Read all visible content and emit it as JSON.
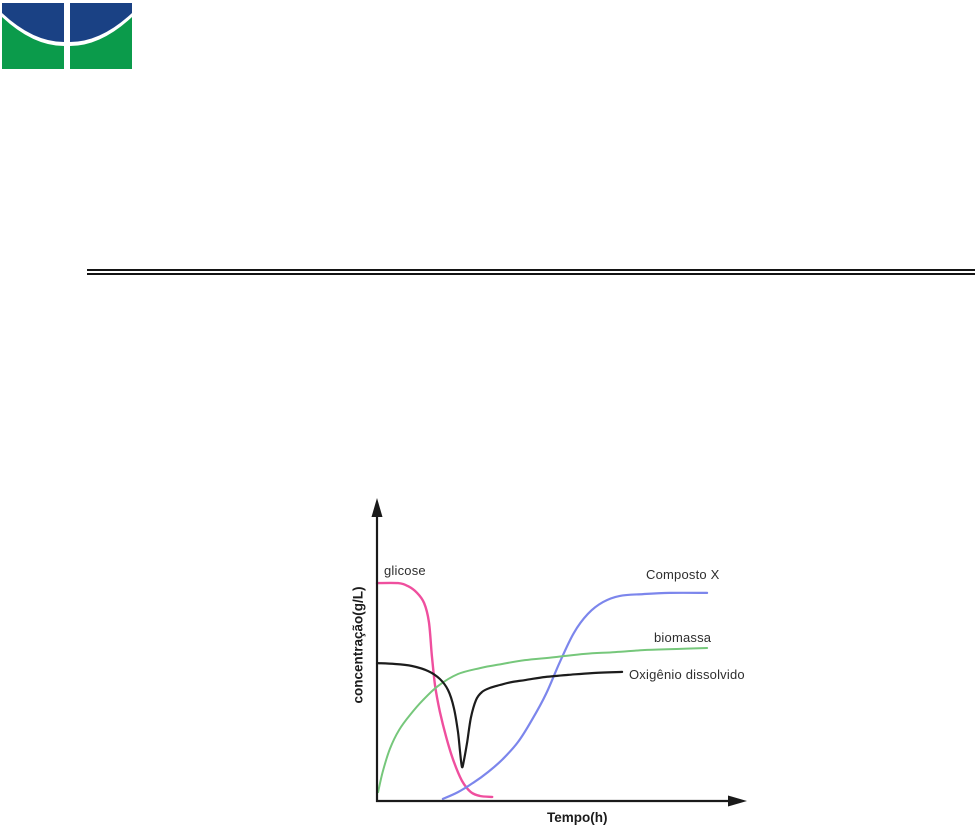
{
  "page": {
    "background": "#ffffff"
  },
  "logo": {
    "name": "university-crest-logo",
    "blue": "#1a4184",
    "green": "#0b9b4b"
  },
  "divider": {
    "style": "double",
    "color": "#141414"
  },
  "chart_data": {
    "type": "line",
    "title": "",
    "xlabel": "Tempo(h)",
    "ylabel": "concentração(g/L)",
    "grid": false,
    "axes": {
      "ticks": "none",
      "arrows": true,
      "qualitative": true
    },
    "axis_color": "#1a1a1a",
    "label_color": "#2e2e2e",
    "xlim_norm": [
      0,
      1
    ],
    "ylim_norm": [
      0,
      1
    ],
    "legend_position": "inline-labels-near-curves",
    "series": [
      {
        "name": "glicose",
        "color": "#ef4f9e",
        "stroke_width": 2.4,
        "shape": "high plateau then sigmoidal depletion to ~0",
        "points": [
          [
            0.0,
            0.736
          ],
          [
            0.057,
            0.736
          ],
          [
            0.084,
            0.726
          ],
          [
            0.109,
            0.703
          ],
          [
            0.128,
            0.669
          ],
          [
            0.141,
            0.605
          ],
          [
            0.149,
            0.493
          ],
          [
            0.158,
            0.389
          ],
          [
            0.171,
            0.301
          ],
          [
            0.188,
            0.216
          ],
          [
            0.207,
            0.139
          ],
          [
            0.231,
            0.068
          ],
          [
            0.255,
            0.03
          ],
          [
            0.28,
            0.017
          ],
          [
            0.313,
            0.014
          ]
        ]
      },
      {
        "name": "Composto X",
        "color": "#7c86ec",
        "stroke_width": 2.2,
        "shape": "lag then sigmoidal rise to high plateau",
        "points": [
          [
            0.179,
            0.007
          ],
          [
            0.22,
            0.03
          ],
          [
            0.261,
            0.061
          ],
          [
            0.302,
            0.098
          ],
          [
            0.342,
            0.142
          ],
          [
            0.383,
            0.199
          ],
          [
            0.421,
            0.274
          ],
          [
            0.459,
            0.361
          ],
          [
            0.497,
            0.47
          ],
          [
            0.535,
            0.568
          ],
          [
            0.573,
            0.632
          ],
          [
            0.614,
            0.672
          ],
          [
            0.66,
            0.693
          ],
          [
            0.723,
            0.699
          ],
          [
            0.796,
            0.703
          ],
          [
            0.897,
            0.703
          ]
        ]
      },
      {
        "name": "biomassa",
        "color": "#76c77b",
        "stroke_width": 2.0,
        "shape": "fast initial growth then slow asymptotic increase",
        "points": [
          [
            0.003,
            0.03
          ],
          [
            0.016,
            0.101
          ],
          [
            0.035,
            0.176
          ],
          [
            0.06,
            0.24
          ],
          [
            0.09,
            0.291
          ],
          [
            0.125,
            0.341
          ],
          [
            0.166,
            0.389
          ],
          [
            0.22,
            0.429
          ],
          [
            0.28,
            0.449
          ],
          [
            0.34,
            0.463
          ],
          [
            0.402,
            0.476
          ],
          [
            0.484,
            0.486
          ],
          [
            0.565,
            0.497
          ],
          [
            0.647,
            0.503
          ],
          [
            0.728,
            0.51
          ],
          [
            0.823,
            0.514
          ],
          [
            0.897,
            0.517
          ]
        ]
      },
      {
        "name": "Oxigênio dissolvido",
        "color": "#1c1c1c",
        "stroke_width": 2.2,
        "shape": "plateau, sharp narrow dip to minimum, recovery to lower plateau",
        "points": [
          [
            0.0,
            0.466
          ],
          [
            0.049,
            0.463
          ],
          [
            0.095,
            0.456
          ],
          [
            0.139,
            0.439
          ],
          [
            0.171,
            0.412
          ],
          [
            0.193,
            0.375
          ],
          [
            0.209,
            0.314
          ],
          [
            0.22,
            0.233
          ],
          [
            0.226,
            0.162
          ],
          [
            0.231,
            0.115
          ],
          [
            0.236,
            0.135
          ],
          [
            0.245,
            0.199
          ],
          [
            0.255,
            0.28
          ],
          [
            0.269,
            0.341
          ],
          [
            0.285,
            0.368
          ],
          [
            0.307,
            0.382
          ],
          [
            0.334,
            0.392
          ],
          [
            0.367,
            0.402
          ],
          [
            0.405,
            0.409
          ],
          [
            0.457,
            0.419
          ],
          [
            0.519,
            0.426
          ],
          [
            0.584,
            0.432
          ],
          [
            0.666,
            0.436
          ]
        ]
      }
    ]
  }
}
